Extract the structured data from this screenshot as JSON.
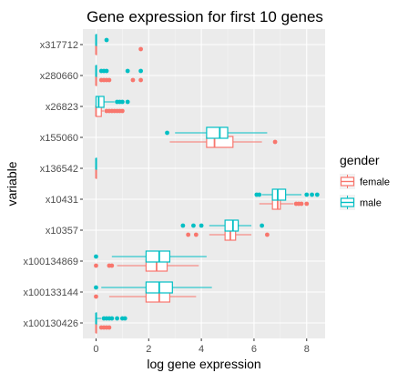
{
  "chart_data": {
    "type": "boxplot",
    "title": "Gene expression for first 10 genes",
    "xlabel": "log gene expression",
    "ylabel": "variable",
    "xlim": [
      -0.5,
      8.7
    ],
    "x_ticks": [
      0,
      2,
      4,
      6,
      8
    ],
    "grid": true,
    "legend": {
      "title": "gender",
      "placement": "right",
      "entries": [
        {
          "label": "female",
          "color": "#F8766D"
        },
        {
          "label": "male",
          "color": "#00BFC4"
        }
      ]
    },
    "categories": [
      "x317712",
      "x280660",
      "x26823",
      "x155060",
      "x136542",
      "x10431",
      "x10357",
      "x100134869",
      "x100133144",
      "x100130426"
    ],
    "series": [
      {
        "name": "female",
        "color": "#F8766D",
        "boxes": [
          {
            "category": "x317712",
            "min": 0,
            "q1": 0,
            "median": 0,
            "q3": 0,
            "max": 0,
            "outliers": [
              1.7
            ]
          },
          {
            "category": "x280660",
            "min": 0,
            "q1": 0,
            "median": 0,
            "q3": 0,
            "max": 0,
            "outliers": [
              0.2,
              0.3,
              0.4,
              0.5,
              1.4,
              1.7
            ]
          },
          {
            "category": "x26823",
            "min": 0,
            "q1": 0,
            "median": 0,
            "q3": 0.2,
            "max": 0.3,
            "outliers": [
              0.4,
              0.5,
              0.6,
              0.7,
              0.8,
              0.9,
              1.0
            ]
          },
          {
            "category": "x155060",
            "min": 2.8,
            "q1": 4.2,
            "median": 4.5,
            "q3": 5.2,
            "max": 6.3,
            "outliers": [
              6.8
            ]
          },
          {
            "category": "x136542",
            "min": 0,
            "q1": 0,
            "median": 0,
            "q3": 0,
            "max": 0,
            "outliers": []
          },
          {
            "category": "x10431",
            "min": 6.2,
            "q1": 6.7,
            "median": 6.9,
            "q3": 7.0,
            "max": 7.5,
            "outliers": [
              7.6,
              7.7,
              7.8,
              8.0
            ]
          },
          {
            "category": "x10357",
            "min": 4.3,
            "q1": 4.9,
            "median": 5.1,
            "q3": 5.3,
            "max": 5.9,
            "outliers": [
              3.5,
              3.8,
              6.5
            ]
          },
          {
            "category": "x100134869",
            "min": 0.8,
            "q1": 1.9,
            "median": 2.3,
            "q3": 2.7,
            "max": 3.9,
            "outliers": [
              0.0,
              0.5,
              0.6
            ]
          },
          {
            "category": "x100133144",
            "min": 0.5,
            "q1": 1.9,
            "median": 2.4,
            "q3": 2.8,
            "max": 3.8,
            "outliers": [
              0.0
            ]
          },
          {
            "category": "x100130426",
            "min": 0,
            "q1": 0,
            "median": 0,
            "q3": 0,
            "max": 0,
            "outliers": [
              0.2,
              0.3,
              0.4,
              0.5
            ]
          }
        ]
      },
      {
        "name": "male",
        "color": "#00BFC4",
        "boxes": [
          {
            "category": "x317712",
            "min": 0,
            "q1": 0,
            "median": 0,
            "q3": 0,
            "max": 0,
            "outliers": [
              0.4
            ]
          },
          {
            "category": "x280660",
            "min": 0,
            "q1": 0,
            "median": 0,
            "q3": 0,
            "max": 0,
            "outliers": [
              0.2,
              0.3,
              0.4,
              1.2,
              1.7
            ]
          },
          {
            "category": "x26823",
            "min": 0,
            "q1": 0,
            "median": 0.1,
            "q3": 0.3,
            "max": 0.7,
            "outliers": [
              0.8,
              0.9,
              1.0,
              1.2
            ]
          },
          {
            "category": "x155060",
            "min": 3.0,
            "q1": 4.2,
            "median": 4.7,
            "q3": 5.0,
            "max": 6.5,
            "outliers": [
              2.7
            ]
          },
          {
            "category": "x136542",
            "min": 0,
            "q1": 0,
            "median": 0,
            "q3": 0,
            "max": 0,
            "outliers": []
          },
          {
            "category": "x10431",
            "min": 6.3,
            "q1": 6.7,
            "median": 6.9,
            "q3": 7.2,
            "max": 7.8,
            "outliers": [
              6.1,
              6.2,
              8.0,
              8.2,
              8.4
            ]
          },
          {
            "category": "x10357",
            "min": 4.3,
            "q1": 4.9,
            "median": 5.2,
            "q3": 5.4,
            "max": 5.9,
            "outliers": [
              3.3,
              3.7,
              4.0,
              6.3
            ]
          },
          {
            "category": "x100134869",
            "min": 0.6,
            "q1": 1.9,
            "median": 2.4,
            "q3": 2.8,
            "max": 4.2,
            "outliers": [
              0.0
            ]
          },
          {
            "category": "x100133144",
            "min": 0.2,
            "q1": 1.9,
            "median": 2.4,
            "q3": 2.9,
            "max": 4.4,
            "outliers": [
              0.0
            ]
          },
          {
            "category": "x100130426",
            "min": 0,
            "q1": 0,
            "median": 0,
            "q3": 0,
            "max": 0.2,
            "outliers": [
              0.3,
              0.4,
              0.5,
              0.6,
              0.8,
              1.0,
              1.1
            ]
          }
        ]
      }
    ]
  }
}
